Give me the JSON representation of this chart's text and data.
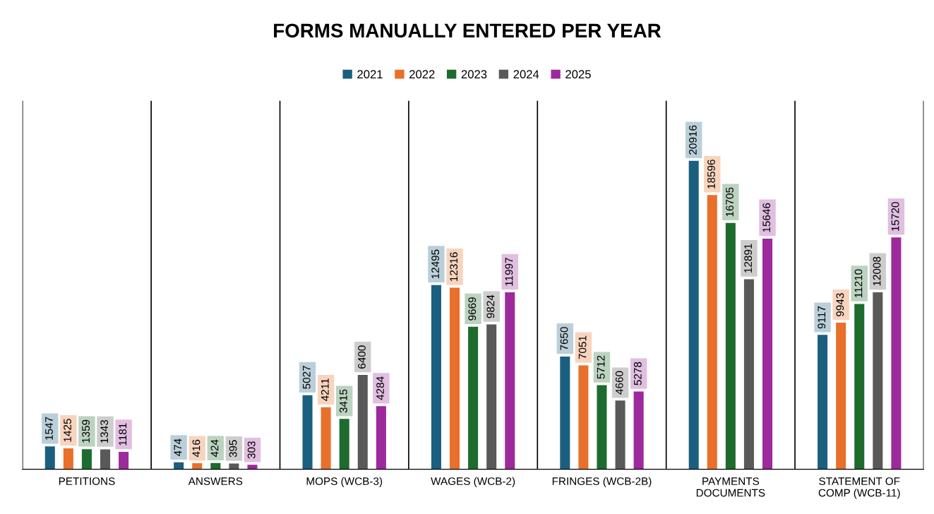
{
  "chart_data": {
    "type": "bar",
    "title": "FORMS MANUALLY ENTERED PER YEAR",
    "categories": [
      "PETITIONS",
      "ANSWERS",
      "MOPS (WCB-3)",
      "WAGES (WCB-2)",
      "FRINGES (WCB-2B)",
      "PAYMENTS\nDOCUMENTS",
      "STATEMENT OF\nCOMP (WCB-11)"
    ],
    "series": [
      {
        "name": "2021",
        "color": "#1a5f80",
        "values": [
          1547,
          474,
          5027,
          12495,
          7650,
          20916,
          9117
        ]
      },
      {
        "name": "2022",
        "color": "#e8702a",
        "values": [
          1425,
          416,
          4211,
          12316,
          7051,
          18596,
          9943
        ]
      },
      {
        "name": "2023",
        "color": "#1e6b2e",
        "values": [
          1359,
          424,
          3415,
          9669,
          5712,
          16705,
          11210
        ]
      },
      {
        "name": "2024",
        "color": "#595959",
        "values": [
          1343,
          395,
          6400,
          9824,
          4660,
          12891,
          12008
        ]
      },
      {
        "name": "2025",
        "color": "#9c2a9c",
        "values": [
          1181,
          303,
          4284,
          11997,
          5278,
          15646,
          15720
        ]
      }
    ],
    "data_labels": true,
    "legend": "top",
    "grid": "x"
  }
}
